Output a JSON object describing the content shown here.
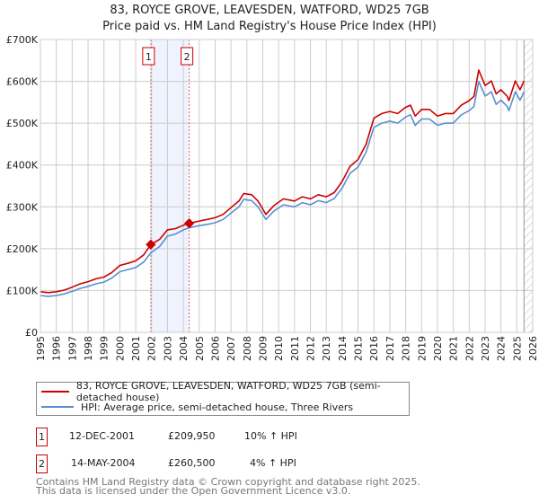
{
  "title_line1": "83, ROYCE GROVE, LEAVESDEN, WATFORD, WD25 7GB",
  "title_line2": "Price paid vs. HM Land Registry's House Price Index (HPI)",
  "chart_data": {
    "type": "line",
    "title": "83, ROYCE GROVE, LEAVESDEN, WATFORD, WD25 7GB — Price paid vs. HM Land Registry's House Price Index (HPI)",
    "xlim": [
      1995,
      2026
    ],
    "ylim": [
      0,
      700000
    ],
    "x_ticks": [
      "1995",
      "1996",
      "1997",
      "1998",
      "1999",
      "2000",
      "2001",
      "2002",
      "2003",
      "2004",
      "2005",
      "2006",
      "2007",
      "2008",
      "2009",
      "2010",
      "2011",
      "2012",
      "2013",
      "2014",
      "2015",
      "2016",
      "2017",
      "2018",
      "2019",
      "2020",
      "2021",
      "2022",
      "2023",
      "2024",
      "2025",
      "2026"
    ],
    "y_ticks": [
      {
        "v": 0,
        "label": "£0"
      },
      {
        "v": 100000,
        "label": "£100K"
      },
      {
        "v": 200000,
        "label": "£200K"
      },
      {
        "v": 300000,
        "label": "£300K"
      },
      {
        "v": 400000,
        "label": "£400K"
      },
      {
        "v": 500000,
        "label": "£500K"
      },
      {
        "v": 600000,
        "label": "£600K"
      },
      {
        "v": 700000,
        "label": "£700K"
      }
    ],
    "grid": true,
    "shaded_range": [
      2001.95,
      2004.37
    ],
    "hatched_from": 2025.45,
    "series": [
      {
        "name": "83, ROYCE GROVE, LEAVESDEN, WATFORD, WD25 7GB (semi-detached house)",
        "color": "#cc0000",
        "x": [
          1995,
          1995.5,
          1996,
          1996.5,
          1997,
          1997.5,
          1998,
          1998.5,
          1999,
          1999.5,
          2000,
          2000.5,
          2001,
          2001.5,
          2001.95,
          2002.5,
          2003,
          2003.5,
          2004,
          2004.37,
          2005,
          2005.5,
          2006,
          2006.5,
          2007,
          2007.5,
          2007.8,
          2008.3,
          2008.7,
          2009.2,
          2009.7,
          2010.3,
          2011,
          2011.5,
          2012,
          2012.5,
          2013,
          2013.5,
          2014,
          2014.5,
          2015,
          2015.5,
          2016,
          2016.5,
          2017,
          2017.5,
          2018,
          2018.3,
          2018.6,
          2019,
          2019.5,
          2020,
          2020.5,
          2021,
          2021.5,
          2022,
          2022.3,
          2022.6,
          2023,
          2023.4,
          2023.7,
          2024,
          2024.4,
          2024.5,
          2024.9,
          2025.2,
          2025.45
        ],
        "y": [
          97000,
          95000,
          97000,
          101000,
          108000,
          116000,
          121000,
          128000,
          132000,
          143000,
          160000,
          165000,
          171000,
          185000,
          209950,
          222000,
          245000,
          248000,
          256000,
          260500,
          266000,
          270000,
          274000,
          282000,
          298000,
          314000,
          332000,
          329000,
          314000,
          282000,
          303000,
          319000,
          314000,
          324000,
          319000,
          329000,
          324000,
          334000,
          361000,
          397000,
          413000,
          449000,
          512000,
          523000,
          528000,
          523000,
          538000,
          543000,
          517000,
          533000,
          533000,
          517000,
          523000,
          523000,
          543000,
          554000,
          564000,
          627000,
          590000,
          601000,
          570000,
          580000,
          564000,
          554000,
          601000,
          580000,
          601000
        ]
      },
      {
        "name": "HPI: Average price, semi-detached house, Three Rivers",
        "color": "#5b8fd0",
        "x": [
          1995,
          1995.5,
          1996,
          1996.5,
          1997,
          1997.5,
          1998,
          1998.5,
          1999,
          1999.5,
          2000,
          2000.5,
          2001,
          2001.5,
          2001.95,
          2002.5,
          2003,
          2003.5,
          2004,
          2004.37,
          2005,
          2005.5,
          2006,
          2006.5,
          2007,
          2007.5,
          2007.8,
          2008.3,
          2008.7,
          2009.2,
          2009.7,
          2010.3,
          2011,
          2011.5,
          2012,
          2012.5,
          2013,
          2013.5,
          2014,
          2014.5,
          2015,
          2015.5,
          2016,
          2016.5,
          2017,
          2017.5,
          2018,
          2018.3,
          2018.6,
          2019,
          2019.5,
          2020,
          2020.5,
          2021,
          2021.5,
          2022,
          2022.3,
          2022.6,
          2023,
          2023.4,
          2023.7,
          2024,
          2024.4,
          2024.5,
          2024.9,
          2025.2,
          2025.45
        ],
        "y": [
          88000,
          86000,
          88000,
          92000,
          98000,
          105000,
          110000,
          116000,
          120000,
          130000,
          145000,
          150000,
          155000,
          168000,
          190000,
          205000,
          230000,
          235000,
          245000,
          250000,
          255000,
          258000,
          262000,
          270000,
          285000,
          300000,
          318000,
          315000,
          300000,
          270000,
          290000,
          305000,
          300000,
          310000,
          305000,
          315000,
          310000,
          320000,
          345000,
          380000,
          395000,
          430000,
          490000,
          500000,
          505000,
          500000,
          515000,
          520000,
          495000,
          510000,
          510000,
          495000,
          500000,
          500000,
          520000,
          530000,
          540000,
          600000,
          565000,
          575000,
          545000,
          555000,
          540000,
          530000,
          575000,
          555000,
          575000
        ]
      }
    ],
    "sales": [
      {
        "id": "1",
        "x": 2001.95,
        "y": 209950
      },
      {
        "id": "2",
        "x": 2004.37,
        "y": 260500
      }
    ]
  },
  "legend": {
    "property": "83, ROYCE GROVE, LEAVESDEN, WATFORD, WD25 7GB (semi-detached house)",
    "hpi": "HPI: Average price, semi-detached house, Three Rivers"
  },
  "transactions": [
    {
      "id": "1",
      "date": "12-DEC-2001",
      "price": "£209,950",
      "change": "10% ↑ HPI"
    },
    {
      "id": "2",
      "date": "14-MAY-2004",
      "price": "£260,500",
      "change": "4% ↑ HPI"
    }
  ],
  "footer": {
    "line1": "Contains HM Land Registry data © Crown copyright and database right 2025.",
    "line2": "This data is licensed under the Open Government Licence v3.0."
  }
}
